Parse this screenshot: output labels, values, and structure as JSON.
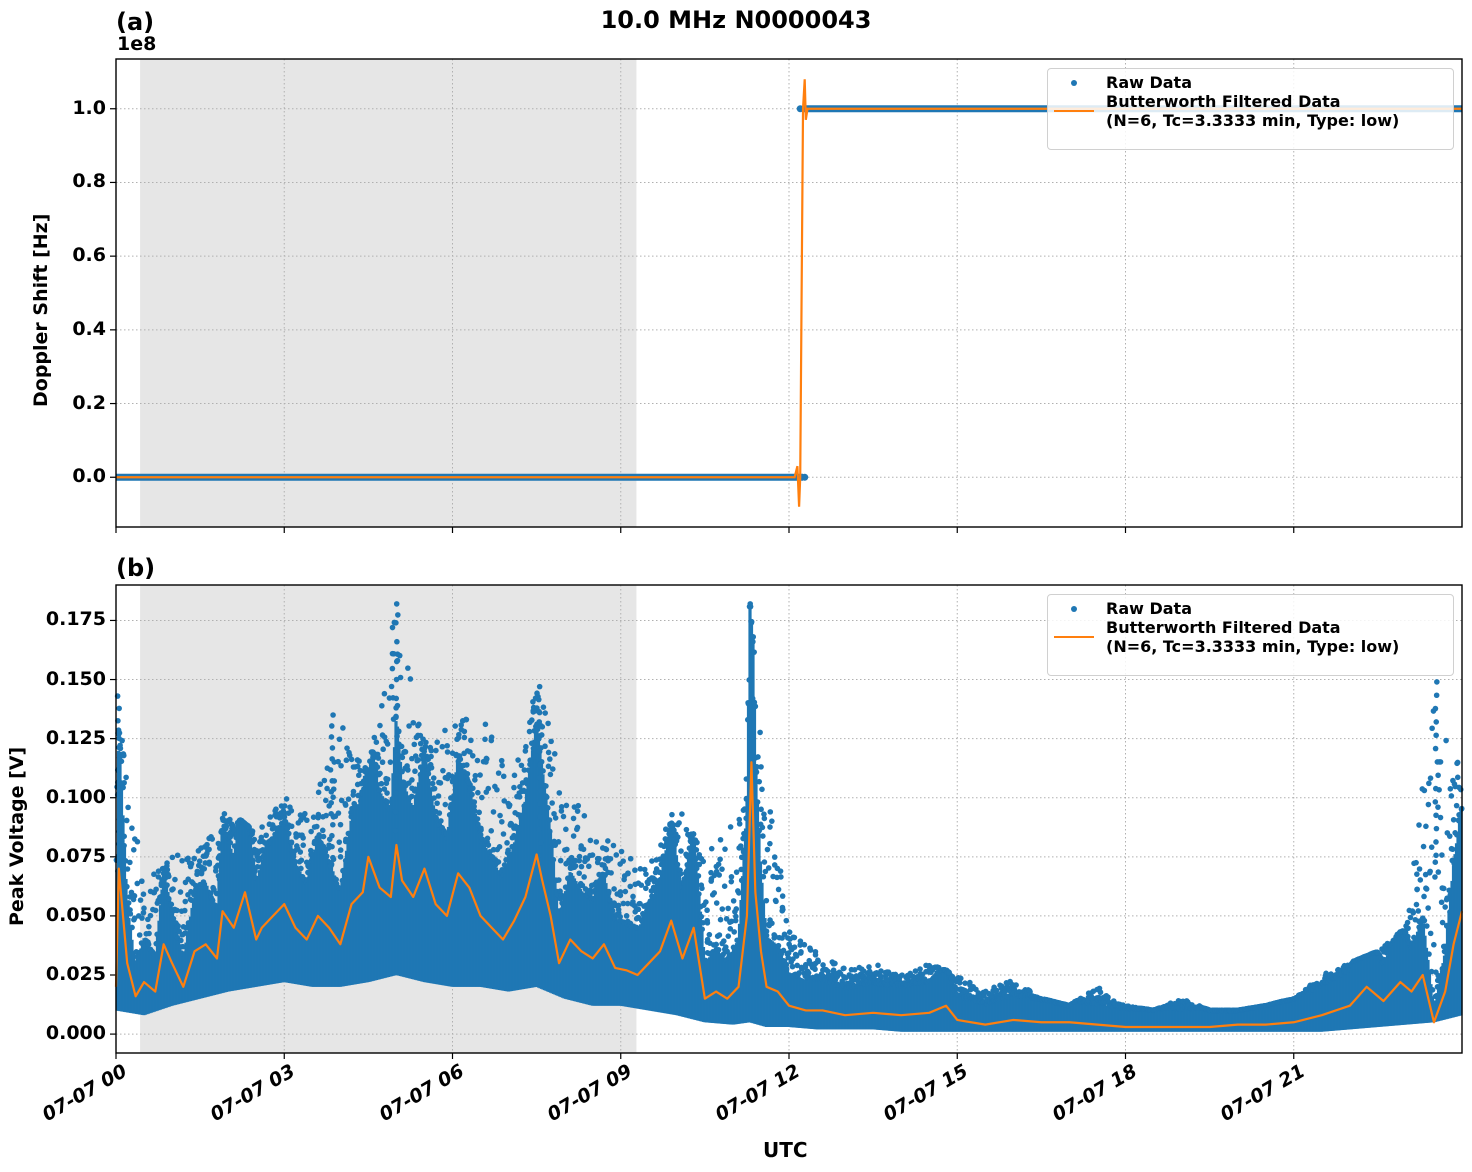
{
  "figure": {
    "title": "10.0 MHz N0000043",
    "xlabel": "UTC",
    "xticks": [
      "07-07 00",
      "07-07 03",
      "07-07 06",
      "07-07 09",
      "07-07 12",
      "07-07 15",
      "07-07 18",
      "07-07 21"
    ]
  },
  "panel_a": {
    "label": "(a)",
    "offset_text": "1e8",
    "ylabel": "Doppler Shift [Hz]",
    "yticks": [
      "0.0",
      "0.2",
      "0.4",
      "0.6",
      "0.8",
      "1.0"
    ],
    "legend": {
      "raw": "Raw Data",
      "filtered_line1": "Butterworth Filtered Data",
      "filtered_line2": "(N=6, Tc=3.3333 min, Type: low)"
    }
  },
  "panel_b": {
    "label": "(b)",
    "ylabel": "Peak Voltage [V]",
    "yticks": [
      "0.000",
      "0.025",
      "0.050",
      "0.075",
      "0.100",
      "0.125",
      "0.150",
      "0.175"
    ],
    "legend": {
      "raw": "Raw Data",
      "filtered_line1": "Butterworth Filtered Data",
      "filtered_line2": "(N=6, Tc=3.3333 min, Type: low)"
    }
  },
  "colors": {
    "raw": "#1f77b4",
    "filtered": "#ff7f0e",
    "shade": "#e6e6e6",
    "grid": "#b0b0b0"
  },
  "chart_data": [
    {
      "type": "scatter",
      "title": "10.0 MHz N0000043",
      "panel": "(a)",
      "xlabel": "",
      "ylabel": "Doppler Shift [Hz]",
      "y_scale_offset": "1e8",
      "xlim_hours_utc": [
        0,
        24
      ],
      "ylim": [
        -13500000,
        113500000
      ],
      "grid": true,
      "legend_position": "upper right",
      "shaded_region_hours": [
        0.43,
        9.28
      ],
      "series": [
        {
          "name": "Raw Data",
          "style": "points",
          "x_hours": [
            0,
            12.25,
            12.25,
            24
          ],
          "y": [
            0,
            0,
            100000000,
            100000000
          ]
        },
        {
          "name": "Butterworth Filtered Data (N=6, Tc=3.3333 min, Type: low)",
          "style": "line",
          "x_hours": [
            0,
            12.1,
            12.15,
            12.18,
            12.2,
            12.25,
            12.28,
            12.3,
            12.33,
            24
          ],
          "y": [
            0,
            0,
            3000000,
            -8000000,
            0,
            100000000,
            108000000,
            97000000,
            100000000,
            100000000
          ]
        }
      ]
    },
    {
      "type": "scatter",
      "panel": "(b)",
      "xlabel": "UTC",
      "ylabel": "Peak Voltage [V]",
      "xlim_hours_utc": [
        0,
        24
      ],
      "ylim": [
        -0.008,
        0.19
      ],
      "grid": true,
      "legend_position": "upper right",
      "shaded_region_hours": [
        0.43,
        9.28
      ],
      "series": [
        {
          "name": "Raw Data",
          "style": "points",
          "x_hours": [
            0,
            0.5,
            1,
            1.5,
            2,
            2.5,
            3,
            3.5,
            4,
            4.5,
            5,
            5.5,
            6,
            6.5,
            7,
            7.5,
            8,
            8.5,
            9,
            9.5,
            10,
            10.5,
            11,
            11.3,
            11.6,
            12,
            12.5,
            13,
            13.5,
            14,
            14.5,
            15,
            15.5,
            16,
            16.5,
            17,
            17.5,
            18,
            18.5,
            19,
            19.5,
            20,
            20.5,
            21,
            21.5,
            22,
            22.5,
            23,
            23.5,
            24
          ],
          "y_min": [
            0.01,
            0.008,
            0.012,
            0.015,
            0.018,
            0.02,
            0.022,
            0.02,
            0.02,
            0.022,
            0.025,
            0.022,
            0.02,
            0.02,
            0.018,
            0.02,
            0.015,
            0.012,
            0.012,
            0.01,
            0.008,
            0.005,
            0.004,
            0.005,
            0.003,
            0.003,
            0.002,
            0.002,
            0.002,
            0.001,
            0.001,
            0.001,
            0.001,
            0.001,
            0.001,
            0.001,
            0.001,
            0.001,
            0.001,
            0.001,
            0.001,
            0.001,
            0.001,
            0.001,
            0.001,
            0.002,
            0.003,
            0.004,
            0.005,
            0.008
          ],
          "y_max": [
            0.143,
            0.065,
            0.075,
            0.08,
            0.095,
            0.085,
            0.1,
            0.095,
            0.135,
            0.11,
            0.182,
            0.125,
            0.13,
            0.14,
            0.11,
            0.147,
            0.11,
            0.085,
            0.08,
            0.07,
            0.098,
            0.075,
            0.09,
            0.182,
            0.11,
            0.045,
            0.035,
            0.028,
            0.03,
            0.025,
            0.03,
            0.025,
            0.018,
            0.024,
            0.015,
            0.012,
            0.02,
            0.012,
            0.01,
            0.015,
            0.01,
            0.01,
            0.012,
            0.015,
            0.025,
            0.03,
            0.035,
            0.045,
            0.149,
            0.11
          ]
        },
        {
          "name": "Butterworth Filtered Data (N=6, Tc=3.3333 min, Type: low)",
          "style": "line",
          "x_hours": [
            0,
            0.05,
            0.2,
            0.35,
            0.5,
            0.7,
            0.85,
            1.0,
            1.2,
            1.4,
            1.6,
            1.8,
            1.9,
            2.1,
            2.3,
            2.5,
            2.6,
            2.8,
            3.0,
            3.2,
            3.4,
            3.6,
            3.8,
            4.0,
            4.2,
            4.4,
            4.5,
            4.7,
            4.9,
            5.0,
            5.1,
            5.3,
            5.5,
            5.7,
            5.9,
            6.1,
            6.3,
            6.5,
            6.7,
            6.9,
            7.1,
            7.3,
            7.5,
            7.6,
            7.75,
            7.9,
            8.1,
            8.3,
            8.5,
            8.7,
            8.9,
            9.1,
            9.3,
            9.5,
            9.7,
            9.9,
            10.1,
            10.3,
            10.5,
            10.7,
            10.9,
            11.1,
            11.25,
            11.33,
            11.4,
            11.5,
            11.6,
            11.8,
            12.0,
            12.3,
            12.6,
            13.0,
            13.5,
            14.0,
            14.5,
            14.8,
            15.0,
            15.5,
            16.0,
            16.5,
            17.0,
            17.5,
            18.0,
            18.5,
            19.0,
            19.5,
            20.0,
            20.5,
            21.0,
            21.5,
            22.0,
            22.3,
            22.6,
            22.9,
            23.1,
            23.3,
            23.5,
            23.7,
            23.85,
            24.0
          ],
          "y": [
            0.02,
            0.07,
            0.03,
            0.016,
            0.022,
            0.018,
            0.038,
            0.03,
            0.02,
            0.035,
            0.038,
            0.032,
            0.052,
            0.045,
            0.06,
            0.04,
            0.045,
            0.05,
            0.055,
            0.045,
            0.04,
            0.05,
            0.045,
            0.038,
            0.055,
            0.06,
            0.075,
            0.062,
            0.058,
            0.08,
            0.065,
            0.058,
            0.07,
            0.055,
            0.05,
            0.068,
            0.062,
            0.05,
            0.045,
            0.04,
            0.048,
            0.058,
            0.076,
            0.065,
            0.05,
            0.03,
            0.04,
            0.035,
            0.032,
            0.038,
            0.028,
            0.027,
            0.025,
            0.03,
            0.035,
            0.048,
            0.032,
            0.045,
            0.015,
            0.018,
            0.015,
            0.02,
            0.05,
            0.115,
            0.06,
            0.035,
            0.02,
            0.018,
            0.012,
            0.01,
            0.01,
            0.008,
            0.009,
            0.008,
            0.009,
            0.012,
            0.006,
            0.004,
            0.006,
            0.005,
            0.005,
            0.004,
            0.003,
            0.003,
            0.003,
            0.003,
            0.004,
            0.004,
            0.005,
            0.008,
            0.012,
            0.02,
            0.014,
            0.022,
            0.018,
            0.025,
            0.005,
            0.018,
            0.038,
            0.052
          ]
        }
      ]
    }
  ]
}
